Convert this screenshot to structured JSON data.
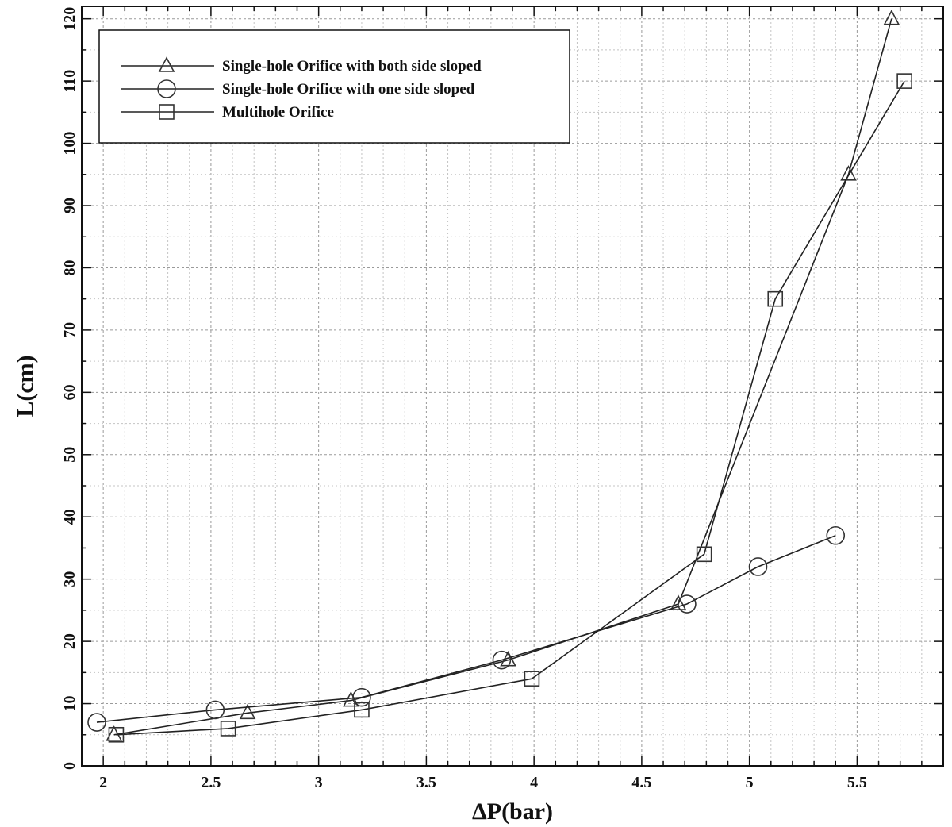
{
  "chart_data": {
    "type": "line",
    "xlabel": "ΔP(bar)",
    "ylabel": "L(cm)",
    "xlim": [
      1.9,
      5.9
    ],
    "ylim": [
      0,
      122
    ],
    "x_ticks": [
      "2",
      "2.5",
      "3",
      "3.5",
      "4",
      "4.5",
      "5",
      "5.5"
    ],
    "y_ticks": [
      "0",
      "10",
      "20",
      "30",
      "40",
      "50",
      "60",
      "70",
      "80",
      "90",
      "100",
      "110",
      "120"
    ],
    "grid": true,
    "legend_position": "top-left",
    "series": [
      {
        "name": "Single-hole Orifice with both side sloped",
        "marker": "triangle",
        "points": [
          [
            2.05,
            5
          ],
          [
            2.67,
            8.5
          ],
          [
            3.15,
            10.5
          ],
          [
            3.88,
            17
          ],
          [
            4.67,
            26
          ],
          [
            5.46,
            95
          ],
          [
            5.66,
            120
          ]
        ]
      },
      {
        "name": "Single-hole Orifice with one side sloped",
        "marker": "circle",
        "points": [
          [
            1.97,
            7
          ],
          [
            2.52,
            9
          ],
          [
            3.2,
            11
          ],
          [
            3.85,
            17
          ],
          [
            4.71,
            26
          ],
          [
            5.04,
            32
          ],
          [
            5.4,
            37
          ]
        ]
      },
      {
        "name": "Multihole Orifice",
        "marker": "square",
        "points": [
          [
            2.06,
            5
          ],
          [
            2.58,
            6
          ],
          [
            3.2,
            9
          ],
          [
            3.99,
            14
          ],
          [
            4.79,
            34
          ],
          [
            5.12,
            75
          ],
          [
            5.72,
            110
          ]
        ]
      }
    ]
  }
}
